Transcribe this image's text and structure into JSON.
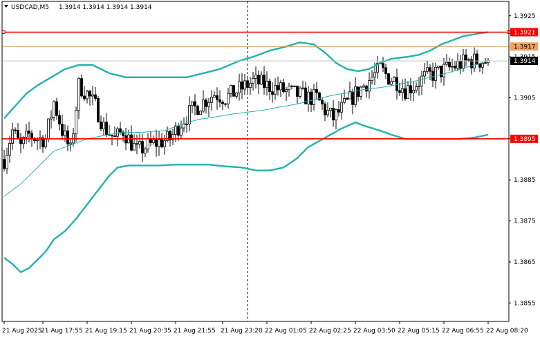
{
  "header": {
    "symbol": "USDCAD,M5",
    "ohlc": "1.3914 1.3914 1.3914 1.3914"
  },
  "colors": {
    "background": "#ffffff",
    "frame": "#000000",
    "candle": "#000000",
    "bollinger": "#20b2aa",
    "moving_average": "#20b2aa",
    "level_line": "#ff0000",
    "orange_line": "#d2a060",
    "bid_line": "#c0c0c0",
    "tag_orange_bg": "#f0a060",
    "tag_red_bg": "#ff0000",
    "tag_black_bg": "#000000",
    "tag_text_light": "#ffffff"
  },
  "chart_data": {
    "type": "candlestick",
    "timeframe": "M5",
    "ylim": [
      1.38505,
      1.39285
    ],
    "y_ticks": [
      "1.3925",
      "1.3915",
      "1.3905",
      "1.3895",
      "1.3885",
      "1.3875",
      "1.3865",
      "1.3855"
    ],
    "x_ticks": [
      {
        "label": "21 Aug 2025",
        "bar": 0
      },
      {
        "label": "21 Aug 17:55",
        "bar": 14
      },
      {
        "label": "21 Aug 19:15",
        "bar": 30
      },
      {
        "label": "21 Aug 20:35",
        "bar": 46
      },
      {
        "label": "21 Aug 21:55",
        "bar": 62
      },
      {
        "label": "21 Aug 23:20",
        "bar": 79
      },
      {
        "label": "22 Aug 01:05",
        "bar": 95
      },
      {
        "label": "22 Aug 02:25",
        "bar": 111
      },
      {
        "label": "22 Aug 03:50",
        "bar": 127
      },
      {
        "label": "22 Aug 05:15",
        "bar": 143
      },
      {
        "label": "22 Aug 06:55",
        "bar": 159
      },
      {
        "label": "22 Aug 08:20",
        "bar": 175
      }
    ],
    "vertical_marker_bar": 88,
    "horizontal_levels": [
      {
        "price": 1.3921,
        "label": "1.3921",
        "style": "red",
        "end_markers": true
      },
      {
        "price": 1.39175,
        "label": "1.3917",
        "style": "orange"
      },
      {
        "price": 1.3914,
        "label": "1.3914",
        "style": "bid"
      },
      {
        "price": 1.3895,
        "label": "1.3895",
        "style": "red"
      }
    ],
    "waypoints": {
      "price": [
        [
          0,
          1.389
        ],
        [
          3,
          1.3897
        ],
        [
          6,
          1.3893
        ],
        [
          9,
          1.3896
        ],
        [
          12,
          1.3895
        ],
        [
          15,
          1.3895
        ],
        [
          18,
          1.3904
        ],
        [
          21,
          1.3897
        ],
        [
          24,
          1.3892
        ],
        [
          27,
          1.3908
        ],
        [
          30,
          1.3906
        ],
        [
          33,
          1.3903
        ],
        [
          36,
          1.3898
        ],
        [
          40,
          1.3895
        ],
        [
          43,
          1.3897
        ],
        [
          48,
          1.3892
        ],
        [
          51,
          1.3893
        ],
        [
          55,
          1.3894
        ],
        [
          60,
          1.3895
        ],
        [
          64,
          1.3899
        ],
        [
          68,
          1.3902
        ],
        [
          72,
          1.3904
        ],
        [
          76,
          1.3906
        ],
        [
          80,
          1.3905
        ],
        [
          85,
          1.3907
        ],
        [
          90,
          1.3909
        ],
        [
          95,
          1.3908
        ],
        [
          100,
          1.3907
        ],
        [
          105,
          1.3906
        ],
        [
          110,
          1.3905
        ],
        [
          113,
          1.3905
        ],
        [
          116,
          1.3902
        ],
        [
          119,
          1.39
        ],
        [
          123,
          1.3903
        ],
        [
          127,
          1.3906
        ],
        [
          130,
          1.3908
        ],
        [
          133,
          1.391
        ],
        [
          136,
          1.3912
        ],
        [
          139,
          1.391
        ],
        [
          142,
          1.3909
        ],
        [
          145,
          1.3907
        ],
        [
          148,
          1.3908
        ],
        [
          152,
          1.391
        ],
        [
          156,
          1.3911
        ],
        [
          160,
          1.3912
        ],
        [
          164,
          1.3913
        ],
        [
          168,
          1.3914
        ],
        [
          172,
          1.3914
        ],
        [
          175,
          1.3914
        ]
      ],
      "upper_band": [
        [
          0,
          1.39
        ],
        [
          4,
          1.3903
        ],
        [
          8,
          1.3906
        ],
        [
          12,
          1.3908
        ],
        [
          17,
          1.391
        ],
        [
          22,
          1.3912
        ],
        [
          27,
          1.3913
        ],
        [
          32,
          1.3913
        ],
        [
          38,
          1.3911
        ],
        [
          44,
          1.391
        ],
        [
          52,
          1.391
        ],
        [
          60,
          1.391
        ],
        [
          66,
          1.391
        ],
        [
          72,
          1.3911
        ],
        [
          78,
          1.3912
        ],
        [
          85,
          1.3914
        ],
        [
          90,
          1.3915
        ],
        [
          96,
          1.39165
        ],
        [
          102,
          1.39175
        ],
        [
          107,
          1.39185
        ],
        [
          112,
          1.3918
        ],
        [
          116,
          1.3916
        ],
        [
          120,
          1.39135
        ],
        [
          124,
          1.3912
        ],
        [
          128,
          1.39115
        ],
        [
          132,
          1.3912
        ],
        [
          136,
          1.39135
        ],
        [
          140,
          1.39145
        ],
        [
          146,
          1.3915
        ],
        [
          150,
          1.39155
        ],
        [
          154,
          1.39165
        ],
        [
          158,
          1.3918
        ],
        [
          162,
          1.3919
        ],
        [
          166,
          1.392
        ],
        [
          170,
          1.39205
        ],
        [
          175,
          1.3921
        ]
      ],
      "lower_band": [
        [
          0,
          1.3866
        ],
        [
          3,
          1.38645
        ],
        [
          6,
          1.38625
        ],
        [
          9,
          1.38635
        ],
        [
          12,
          1.38655
        ],
        [
          15,
          1.38675
        ],
        [
          18,
          1.38705
        ],
        [
          22,
          1.38725
        ],
        [
          26,
          1.38755
        ],
        [
          30,
          1.3879
        ],
        [
          34,
          1.38825
        ],
        [
          38,
          1.3886
        ],
        [
          41,
          1.3888
        ],
        [
          45,
          1.38885
        ],
        [
          50,
          1.38885
        ],
        [
          56,
          1.38885
        ],
        [
          62,
          1.38887
        ],
        [
          68,
          1.38887
        ],
        [
          74,
          1.38887
        ],
        [
          80,
          1.38883
        ],
        [
          86,
          1.3888
        ],
        [
          91,
          1.38873
        ],
        [
          96,
          1.38873
        ],
        [
          101,
          1.3888
        ],
        [
          106,
          1.38903
        ],
        [
          110,
          1.3893
        ],
        [
          114,
          1.38945
        ],
        [
          118,
          1.3896
        ],
        [
          122,
          1.38975
        ],
        [
          127,
          1.3899
        ],
        [
          131,
          1.3898
        ],
        [
          136,
          1.3897
        ],
        [
          140,
          1.3896
        ],
        [
          145,
          1.3895
        ],
        [
          150,
          1.3895
        ],
        [
          155,
          1.3895
        ],
        [
          160,
          1.3895
        ],
        [
          165,
          1.3895
        ],
        [
          170,
          1.38953
        ],
        [
          175,
          1.3896
        ]
      ],
      "moving_average": [
        [
          0,
          1.3881
        ],
        [
          6,
          1.3884
        ],
        [
          12,
          1.3888
        ],
        [
          18,
          1.3892
        ],
        [
          24,
          1.38935
        ],
        [
          30,
          1.3895
        ],
        [
          36,
          1.38958
        ],
        [
          42,
          1.38965
        ],
        [
          50,
          1.38966
        ],
        [
          58,
          1.3897
        ],
        [
          64,
          1.38985
        ],
        [
          70,
          1.38997
        ],
        [
          76,
          1.39003
        ],
        [
          82,
          1.3901
        ],
        [
          88,
          1.39015
        ],
        [
          94,
          1.3902
        ],
        [
          100,
          1.39028
        ],
        [
          106,
          1.39035
        ],
        [
          112,
          1.39045
        ],
        [
          118,
          1.39055
        ],
        [
          124,
          1.39062
        ],
        [
          130,
          1.3907
        ],
        [
          136,
          1.39075
        ],
        [
          142,
          1.39082
        ],
        [
          148,
          1.3909
        ],
        [
          154,
          1.391
        ],
        [
          160,
          1.3911
        ],
        [
          166,
          1.39122
        ],
        [
          170,
          1.3913
        ],
        [
          175,
          1.3914
        ]
      ]
    }
  }
}
